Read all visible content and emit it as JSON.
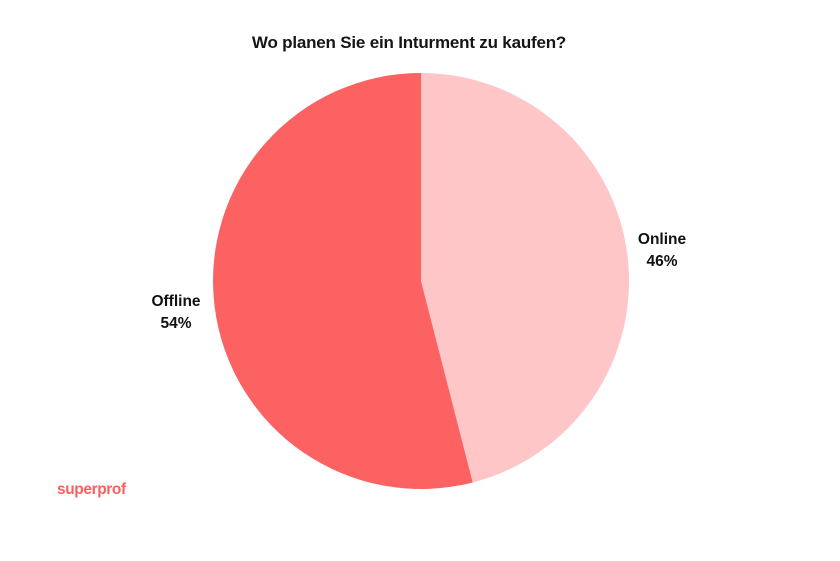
{
  "page": {
    "background": "#ffffff",
    "text_color": "#161616"
  },
  "chart_data": {
    "type": "pie",
    "title": "Wo planen Sie ein Inturment zu kaufen?",
    "slices": [
      {
        "label": "Online",
        "value": 46,
        "display_value": "46%",
        "color": "#ffc6c8"
      },
      {
        "label": "Offline",
        "value": 54,
        "display_value": "54%",
        "color": "#fd6262"
      }
    ],
    "start_angle_deg": 0,
    "direction": "clockwise",
    "legend_position": "none",
    "labels_position": "outside"
  },
  "branding": {
    "logo_text": "superprof",
    "logo_color": "#fb5f5e"
  }
}
